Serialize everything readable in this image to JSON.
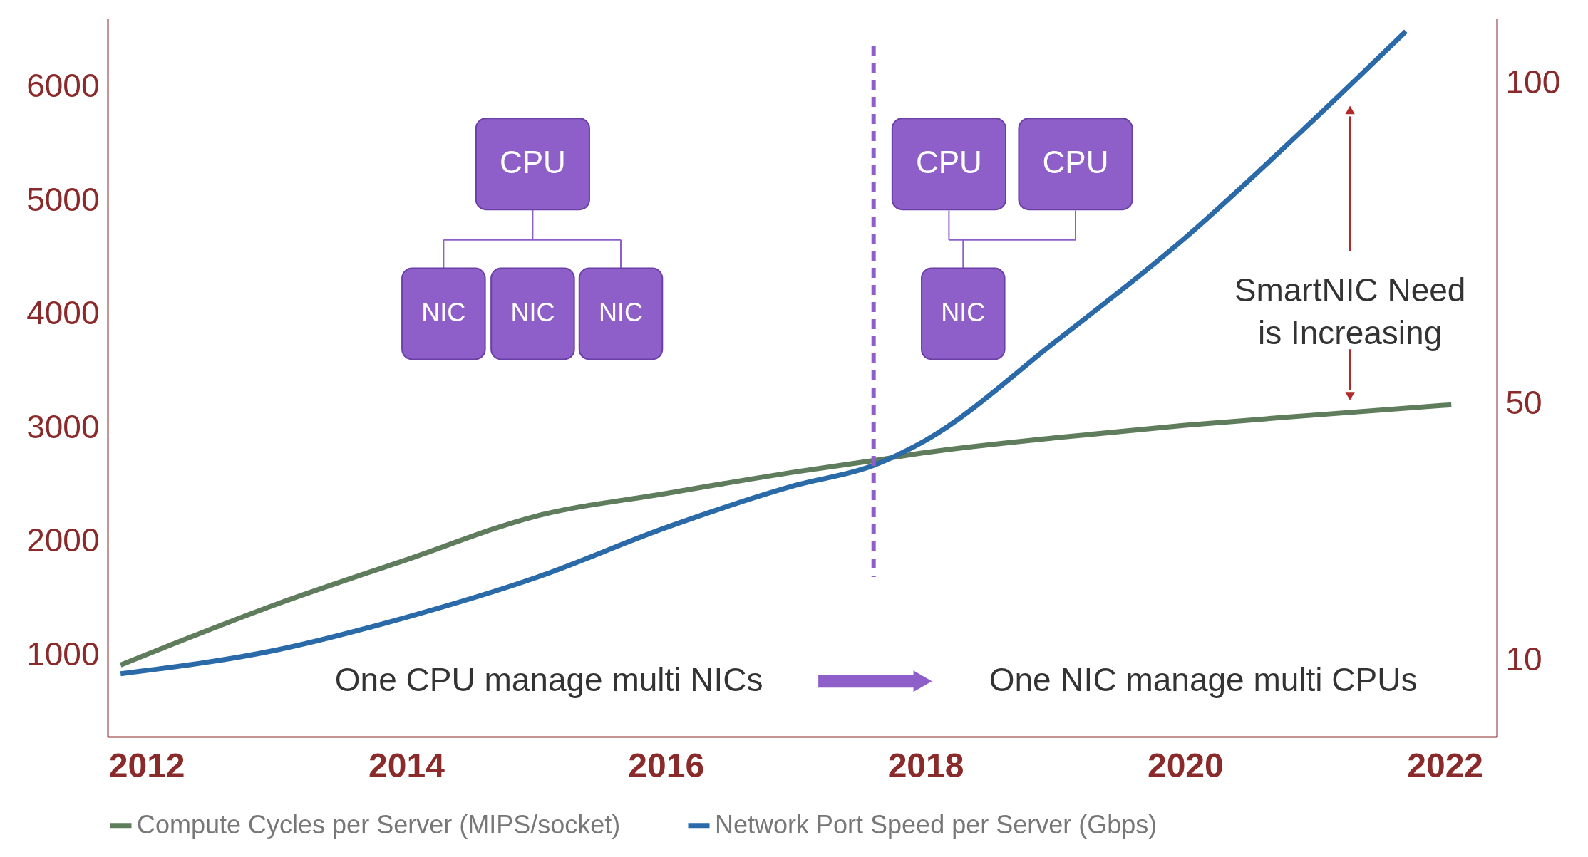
{
  "chart_data": {
    "type": "line",
    "x": [
      2011.8,
      2013,
      2014,
      2015,
      2016,
      2017,
      2017.6,
      2018,
      2019,
      2020,
      2021,
      2022.05
    ],
    "series": [
      {
        "name": "Compute Cycles per Server (MIPS/socket)",
        "color": "#5f7d5c",
        "values": [
          910,
          1445,
          1836,
          2220,
          2420,
          2610,
          2710,
          2780,
          2910,
          3020,
          3110,
          3200
        ]
      },
      {
        "name": "Network Port Speed per Server (Gbps)",
        "color": "#2a6aa8",
        "axis": "y2",
        "x": [
          2011.8,
          2013,
          2014,
          2015,
          2016,
          2017,
          2017.6,
          2018,
          2019,
          2020,
          2021,
          2021.7
        ],
        "values": [
          7.8,
          11.5,
          16.6,
          22.8,
          30.6,
          37.2,
          40.3,
          44.2,
          59.6,
          75.8,
          94.4,
          108
        ]
      }
    ],
    "xlim": [
      2011.7,
      2022.4
    ],
    "xticks": [
      2012,
      2014,
      2016,
      2018,
      2020,
      2022
    ],
    "ylim": [
      280,
      6600
    ],
    "yticks": [
      1000,
      2000,
      3000,
      4000,
      5000,
      6000
    ],
    "y2lim": [
      -2,
      110
    ],
    "y2ticks": [
      10,
      50,
      100
    ],
    "ref_lines": [
      {
        "axis": "x",
        "value": 2017.6,
        "color": "#8e5fc9",
        "line_style": "dashed"
      }
    ],
    "annotations": [
      "CPU",
      "NIC",
      "NIC",
      "NIC",
      "CPU",
      "CPU",
      "NIC",
      "SmartNIC Need\nis Increasing",
      "One CPU manage multi NICs",
      "One NIC manage multi CPUs"
    ],
    "legend": "bottom",
    "grid": false,
    "line_style": "solid",
    "marker": "none"
  }
}
